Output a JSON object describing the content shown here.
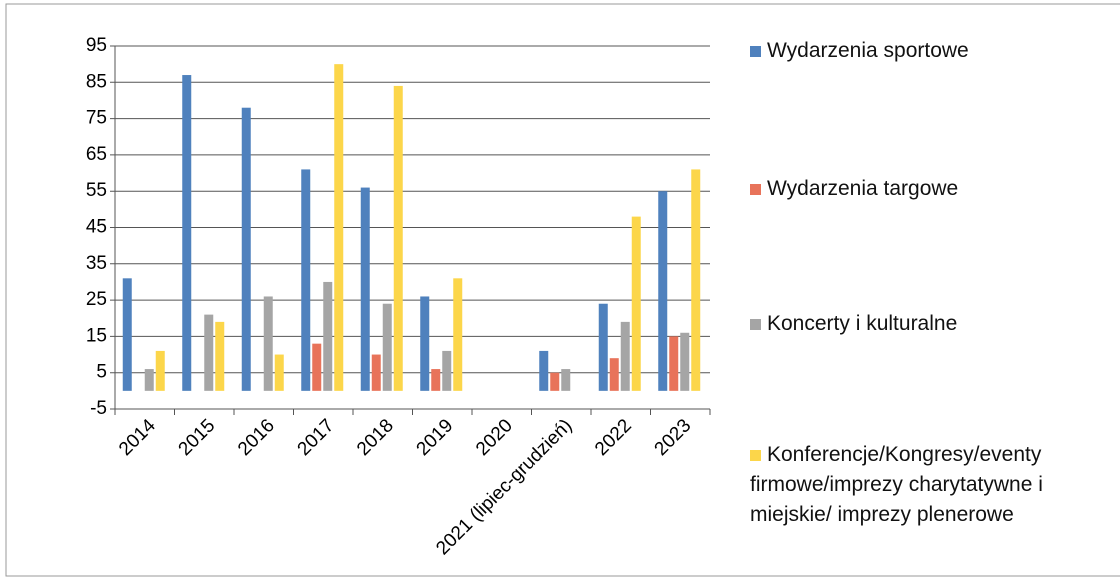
{
  "chart_data": {
    "type": "bar",
    "categories": [
      "2014",
      "2015",
      "2016",
      "2017",
      "2018",
      "2019",
      "2020",
      "2021 (lipiec-grudzień)",
      "2022",
      "2023"
    ],
    "series": [
      {
        "name": "Wydarzenia sportowe",
        "color": "#4f81bd",
        "values": [
          31,
          87,
          78,
          61,
          56,
          26,
          0,
          11,
          24,
          55
        ]
      },
      {
        "name": "Wydarzenia targowe",
        "color": "#e8735a",
        "values": [
          0,
          0,
          0,
          13,
          10,
          6,
          0,
          5,
          9,
          15
        ]
      },
      {
        "name": "Koncerty i kulturalne",
        "color": "#a5a5a5",
        "values": [
          6,
          21,
          26,
          30,
          24,
          11,
          0,
          6,
          19,
          16
        ]
      },
      {
        "name": "Konferencje/Kongresy/eventy firmowe/imprezy charytatywne i miejskie/ imprezy plenerowe",
        "color": "#fcd64a",
        "values": [
          11,
          19,
          10,
          90,
          84,
          31,
          0,
          0,
          48,
          61
        ]
      }
    ],
    "ylim": [
      -5,
      95
    ],
    "yticks": [
      -5,
      5,
      15,
      25,
      35,
      45,
      55,
      65,
      75,
      85,
      95
    ],
    "grid": true,
    "legend": "right"
  }
}
